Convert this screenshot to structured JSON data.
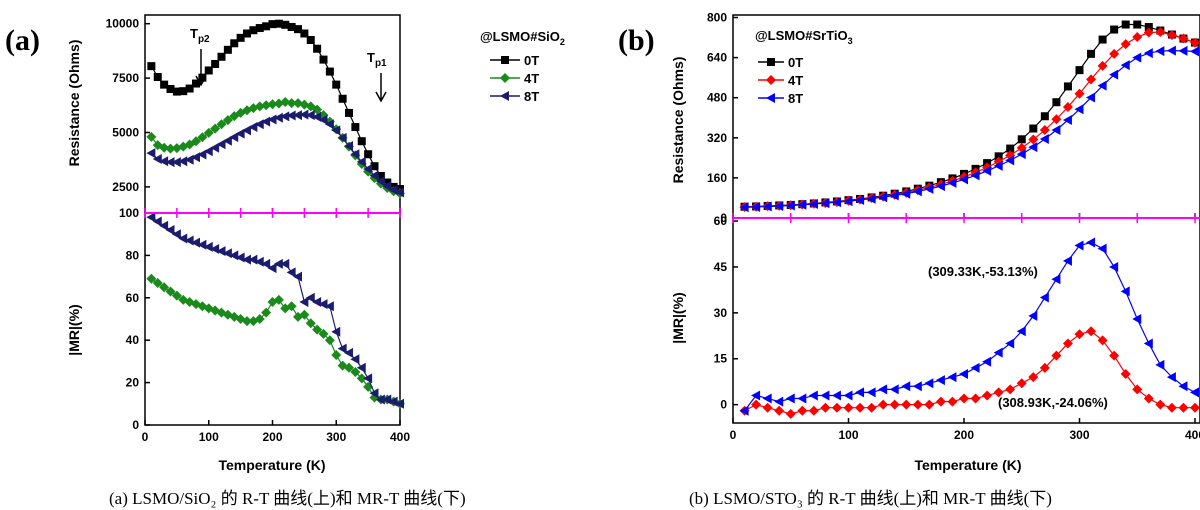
{
  "captions": {
    "a": "(a) LSMO/SiO₂ 的 R-T 曲线(上)和 MR-T 曲线(下)",
    "b": "(b) LSMO/STO₃ 的 R-T 曲线(上)和 MR-T 曲线(下)"
  },
  "colors": {
    "0T": "#000000",
    "4T": "#1a8a1a",
    "8T": "#1c1c6e",
    "4T_b": "#ff0000",
    "8T_b": "#0000ff",
    "divider": "#ff00ff"
  },
  "chart_data": [
    {
      "panel": "(a)",
      "part": "top",
      "type": "scatter",
      "title": "@LSMO#SiO2",
      "xlabel": "Temperature (K)",
      "ylabel": "Resistance (Ohms)",
      "xlim": [
        0,
        400
      ],
      "ylim": [
        1300,
        10400
      ],
      "xticks": [
        0,
        100,
        200,
        300,
        400
      ],
      "yticks": [
        2500,
        5000,
        7500,
        10000
      ],
      "annotations": [
        "Tp2",
        "Tp1"
      ],
      "series": [
        {
          "name": "0T",
          "marker": "square",
          "x": [
            10,
            20,
            30,
            40,
            50,
            60,
            70,
            80,
            90,
            100,
            110,
            120,
            130,
            140,
            150,
            160,
            170,
            180,
            190,
            200,
            210,
            220,
            230,
            240,
            250,
            260,
            270,
            280,
            290,
            300,
            310,
            320,
            330,
            340,
            350,
            360,
            370,
            380,
            390,
            400
          ],
          "y": [
            8050,
            7550,
            7200,
            7000,
            6880,
            6900,
            7020,
            7250,
            7520,
            7850,
            8150,
            8480,
            8800,
            9100,
            9350,
            9550,
            9700,
            9800,
            9880,
            9980,
            10000,
            9950,
            9850,
            9750,
            9550,
            9250,
            8850,
            8350,
            7800,
            7200,
            6550,
            5900,
            5250,
            4600,
            4000,
            3450,
            3000,
            2700,
            2500,
            2400
          ]
        },
        {
          "name": "4T",
          "marker": "diamond",
          "x": [
            10,
            20,
            30,
            40,
            50,
            60,
            70,
            80,
            90,
            100,
            110,
            120,
            130,
            140,
            150,
            160,
            170,
            180,
            190,
            200,
            210,
            220,
            230,
            240,
            250,
            260,
            270,
            280,
            290,
            300,
            310,
            320,
            330,
            340,
            350,
            360,
            370,
            380,
            390,
            400
          ],
          "y": [
            4800,
            4420,
            4300,
            4260,
            4280,
            4350,
            4450,
            4600,
            4780,
            4980,
            5180,
            5380,
            5570,
            5750,
            5900,
            6020,
            6120,
            6200,
            6250,
            6300,
            6330,
            6400,
            6350,
            6350,
            6280,
            6200,
            6050,
            5800,
            5500,
            5150,
            4750,
            4350,
            3950,
            3550,
            3200,
            2900,
            2650,
            2450,
            2300,
            2200
          ]
        },
        {
          "name": "8T",
          "marker": "triangle-left",
          "x": [
            10,
            20,
            30,
            40,
            50,
            60,
            70,
            80,
            90,
            100,
            110,
            120,
            130,
            140,
            150,
            160,
            170,
            180,
            190,
            200,
            210,
            220,
            230,
            240,
            250,
            260,
            270,
            280,
            290,
            300,
            310,
            320,
            330,
            340,
            350,
            360,
            370,
            380,
            390,
            400
          ],
          "y": [
            4050,
            3780,
            3680,
            3640,
            3640,
            3680,
            3750,
            3860,
            3990,
            4140,
            4300,
            4460,
            4620,
            4790,
            4950,
            5100,
            5250,
            5380,
            5500,
            5600,
            5680,
            5740,
            5780,
            5800,
            5820,
            5800,
            5720,
            5580,
            5380,
            5100,
            4750,
            4380,
            4000,
            3650,
            3320,
            3020,
            2760,
            2530,
            2350,
            2250
          ]
        }
      ]
    },
    {
      "panel": "(a)",
      "part": "bottom",
      "type": "scatter",
      "xlabel": "Temperature (K)",
      "ylabel": "|MR|(%)",
      "xlim": [
        0,
        400
      ],
      "ylim": [
        0,
        100
      ],
      "xticks": [
        0,
        100,
        200,
        300,
        400
      ],
      "yticks": [
        0,
        20,
        40,
        60,
        80,
        100
      ],
      "series": [
        {
          "name": "4T",
          "marker": "diamond",
          "x": [
            10,
            20,
            30,
            40,
            50,
            60,
            70,
            80,
            90,
            100,
            110,
            120,
            130,
            140,
            150,
            160,
            170,
            180,
            190,
            200,
            210,
            220,
            230,
            240,
            250,
            260,
            270,
            280,
            290,
            300,
            310,
            320,
            330,
            340,
            350,
            360,
            370,
            380,
            390,
            400
          ],
          "y": [
            69,
            67,
            65,
            63,
            61,
            59,
            58,
            57,
            56,
            55,
            54,
            53,
            52,
            51,
            50,
            49,
            49,
            50,
            53,
            58,
            59,
            55,
            56,
            51,
            52,
            48,
            45,
            43,
            40,
            33,
            28,
            27,
            25,
            22,
            18,
            13,
            12,
            12,
            11,
            10
          ]
        },
        {
          "name": "8T",
          "marker": "triangle-left",
          "x": [
            10,
            20,
            30,
            40,
            50,
            60,
            70,
            80,
            90,
            100,
            110,
            120,
            130,
            140,
            150,
            160,
            170,
            180,
            190,
            200,
            210,
            220,
            230,
            240,
            250,
            260,
            270,
            280,
            290,
            300,
            310,
            320,
            330,
            340,
            350,
            360,
            370,
            380,
            390,
            400
          ],
          "y": [
            98,
            96,
            94,
            92,
            90,
            88,
            87,
            86,
            85,
            84,
            83,
            82,
            81,
            80,
            79,
            78,
            78,
            77,
            76,
            74,
            76,
            76,
            72,
            70,
            58,
            60,
            58,
            57,
            56,
            44,
            36,
            34,
            31,
            27,
            22,
            15,
            12,
            12,
            11,
            10
          ]
        }
      ]
    },
    {
      "panel": "(b)",
      "part": "top",
      "type": "scatter",
      "title": "@LSMO#SrTiO3",
      "xlabel": "Temperature (K)",
      "ylabel": "Resistance (Ohms)",
      "xlim": [
        0,
        400
      ],
      "ylim": [
        0,
        810
      ],
      "xticks": [
        0,
        100,
        200,
        300,
        400
      ],
      "yticks": [
        0,
        160,
        320,
        480,
        640,
        800
      ],
      "series": [
        {
          "name": "0T",
          "marker": "square",
          "x": [
            10,
            20,
            30,
            40,
            50,
            60,
            70,
            80,
            90,
            100,
            110,
            120,
            130,
            140,
            150,
            160,
            170,
            180,
            190,
            200,
            210,
            220,
            230,
            240,
            250,
            260,
            270,
            280,
            290,
            300,
            310,
            320,
            330,
            340,
            350,
            360,
            370,
            380,
            390,
            400
          ],
          "y": [
            45,
            46,
            48,
            50,
            52,
            55,
            58,
            62,
            66,
            71,
            76,
            82,
            89,
            97,
            106,
            117,
            129,
            143,
            158,
            176,
            196,
            219,
            246,
            277,
            314,
            357,
            406,
            462,
            525,
            590,
            655,
            712,
            752,
            772,
            772,
            762,
            748,
            732,
            716,
            700
          ]
        },
        {
          "name": "4T",
          "marker": "diamond",
          "x": [
            10,
            20,
            30,
            40,
            50,
            60,
            70,
            80,
            90,
            100,
            110,
            120,
            130,
            140,
            150,
            160,
            170,
            180,
            190,
            200,
            210,
            220,
            230,
            240,
            250,
            260,
            270,
            280,
            290,
            300,
            310,
            320,
            330,
            340,
            350,
            360,
            370,
            380,
            390,
            400
          ],
          "y": [
            44,
            45,
            47,
            49,
            51,
            54,
            57,
            60,
            64,
            69,
            74,
            80,
            86,
            93,
            101,
            111,
            122,
            134,
            148,
            164,
            182,
            202,
            225,
            250,
            280,
            313,
            351,
            394,
            443,
            496,
            553,
            607,
            655,
            694,
            722,
            740,
            742,
            730,
            716,
            700
          ]
        },
        {
          "name": "8T",
          "marker": "triangle-left",
          "x": [
            10,
            20,
            30,
            40,
            50,
            60,
            70,
            80,
            90,
            100,
            110,
            120,
            130,
            140,
            150,
            160,
            170,
            180,
            190,
            200,
            210,
            220,
            230,
            240,
            250,
            260,
            270,
            280,
            290,
            300,
            310,
            320,
            330,
            340,
            350,
            360,
            370,
            380,
            390,
            400
          ],
          "y": [
            43,
            44,
            46,
            48,
            50,
            53,
            56,
            59,
            63,
            67,
            72,
            77,
            83,
            90,
            97,
            106,
            116,
            127,
            140,
            154,
            170,
            188,
            208,
            230,
            255,
            283,
            315,
            351,
            391,
            434,
            481,
            528,
            572,
            610,
            640,
            658,
            666,
            668,
            667,
            665
          ]
        }
      ]
    },
    {
      "panel": "(b)",
      "part": "bottom",
      "type": "scatter",
      "xlabel": "Temperature (K)",
      "ylabel": "|MR|(%)",
      "xlim": [
        0,
        400
      ],
      "ylim": [
        -6,
        61
      ],
      "xticks": [
        0,
        100,
        200,
        300,
        400
      ],
      "yticks": [
        0,
        15,
        30,
        45,
        60
      ],
      "annotations": [
        "(309.33K,-53.13%)",
        "(308.93K,-24.06%)"
      ],
      "series": [
        {
          "name": "4T",
          "marker": "diamond",
          "x": [
            10,
            20,
            30,
            40,
            50,
            60,
            70,
            80,
            90,
            100,
            110,
            120,
            130,
            140,
            150,
            160,
            170,
            180,
            190,
            200,
            210,
            220,
            230,
            240,
            250,
            260,
            270,
            280,
            290,
            300,
            310,
            320,
            330,
            340,
            350,
            360,
            370,
            380,
            390,
            400
          ],
          "y": [
            -2,
            0,
            -1,
            -2,
            -3,
            -2,
            -2,
            -1,
            -1,
            -1,
            -1,
            -1,
            0,
            0,
            0,
            0,
            0,
            1,
            1,
            2,
            2,
            3,
            4,
            5,
            7,
            9,
            12,
            16,
            20,
            23,
            24,
            21,
            16,
            10,
            5,
            2,
            0,
            -1,
            -1,
            -1
          ]
        },
        {
          "name": "8T",
          "marker": "triangle-left",
          "x": [
            10,
            20,
            30,
            40,
            50,
            60,
            70,
            80,
            90,
            100,
            110,
            120,
            130,
            140,
            150,
            160,
            170,
            180,
            190,
            200,
            210,
            220,
            230,
            240,
            250,
            260,
            270,
            280,
            290,
            300,
            310,
            320,
            330,
            340,
            350,
            360,
            370,
            380,
            390,
            400
          ],
          "y": [
            -2,
            3,
            2,
            1,
            2,
            2,
            3,
            3,
            3,
            3,
            4,
            4,
            5,
            5,
            6,
            6,
            7,
            8,
            9,
            10,
            12,
            14,
            17,
            20,
            24,
            29,
            35,
            41,
            47,
            52,
            53,
            51,
            45,
            37,
            28,
            20,
            13,
            9,
            6,
            4
          ]
        }
      ]
    }
  ]
}
